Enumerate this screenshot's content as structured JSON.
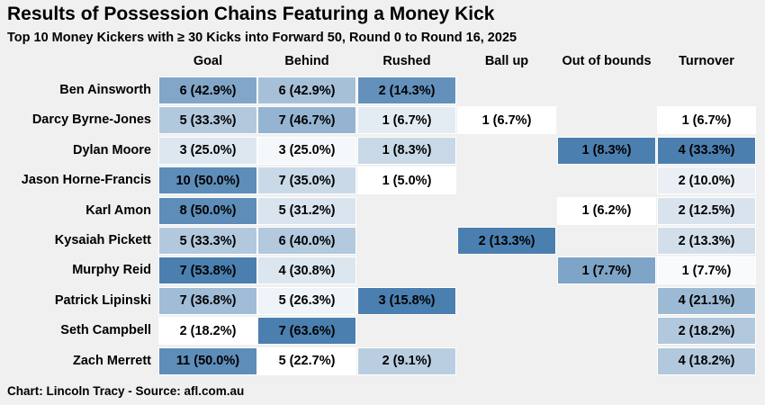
{
  "chart_data": {
    "type": "heatmap",
    "title": "Results of Possession Chains Featuring a Money Kick",
    "subtitle": "Top 10 Money Kickers with ≥ 30 Kicks into Forward 50, Round 0 to Round 16, 2025",
    "caption": "Chart: Lincoln Tracy - Source: afl.com.au",
    "columns": [
      "Goal",
      "Behind",
      "Rushed",
      "Ball up",
      "Out of bounds",
      "Turnover"
    ],
    "rows": [
      {
        "player": "Ben Ainsworth",
        "cells": [
          {
            "count": 6,
            "pct": 42.9,
            "label": "6 (42.9%)"
          },
          {
            "count": 6,
            "pct": 42.9,
            "label": "6 (42.9%)"
          },
          {
            "count": 2,
            "pct": 14.3,
            "label": "2 (14.3%)"
          },
          null,
          null,
          null
        ]
      },
      {
        "player": "Darcy Byrne-Jones",
        "cells": [
          {
            "count": 5,
            "pct": 33.3,
            "label": "5 (33.3%)"
          },
          {
            "count": 7,
            "pct": 46.7,
            "label": "7 (46.7%)"
          },
          {
            "count": 1,
            "pct": 6.7,
            "label": "1 (6.7%)"
          },
          {
            "count": 1,
            "pct": 6.7,
            "label": "1 (6.7%)"
          },
          null,
          {
            "count": 1,
            "pct": 6.7,
            "label": "1 (6.7%)"
          }
        ]
      },
      {
        "player": "Dylan Moore",
        "cells": [
          {
            "count": 3,
            "pct": 25.0,
            "label": "3 (25.0%)"
          },
          {
            "count": 3,
            "pct": 25.0,
            "label": "3 (25.0%)"
          },
          {
            "count": 1,
            "pct": 8.3,
            "label": "1 (8.3%)"
          },
          null,
          {
            "count": 1,
            "pct": 8.3,
            "label": "1 (8.3%)"
          },
          {
            "count": 4,
            "pct": 33.3,
            "label": "4 (33.3%)"
          }
        ]
      },
      {
        "player": "Jason Horne-Francis",
        "cells": [
          {
            "count": 10,
            "pct": 50.0,
            "label": "10 (50.0%)"
          },
          {
            "count": 7,
            "pct": 35.0,
            "label": "7 (35.0%)"
          },
          {
            "count": 1,
            "pct": 5.0,
            "label": "1 (5.0%)"
          },
          null,
          null,
          {
            "count": 2,
            "pct": 10.0,
            "label": "2 (10.0%)"
          }
        ]
      },
      {
        "player": "Karl Amon",
        "cells": [
          {
            "count": 8,
            "pct": 50.0,
            "label": "8 (50.0%)"
          },
          {
            "count": 5,
            "pct": 31.2,
            "label": "5 (31.2%)"
          },
          null,
          null,
          {
            "count": 1,
            "pct": 6.2,
            "label": "1 (6.2%)"
          },
          {
            "count": 2,
            "pct": 12.5,
            "label": "2 (12.5%)"
          }
        ]
      },
      {
        "player": "Kysaiah Pickett",
        "cells": [
          {
            "count": 5,
            "pct": 33.3,
            "label": "5 (33.3%)"
          },
          {
            "count": 6,
            "pct": 40.0,
            "label": "6 (40.0%)"
          },
          null,
          {
            "count": 2,
            "pct": 13.3,
            "label": "2 (13.3%)"
          },
          null,
          {
            "count": 2,
            "pct": 13.3,
            "label": "2 (13.3%)"
          }
        ]
      },
      {
        "player": "Murphy Reid",
        "cells": [
          {
            "count": 7,
            "pct": 53.8,
            "label": "7 (53.8%)"
          },
          {
            "count": 4,
            "pct": 30.8,
            "label": "4 (30.8%)"
          },
          null,
          null,
          {
            "count": 1,
            "pct": 7.7,
            "label": "1 (7.7%)"
          },
          {
            "count": 1,
            "pct": 7.7,
            "label": "1 (7.7%)"
          }
        ]
      },
      {
        "player": "Patrick Lipinski",
        "cells": [
          {
            "count": 7,
            "pct": 36.8,
            "label": "7 (36.8%)"
          },
          {
            "count": 5,
            "pct": 26.3,
            "label": "5 (26.3%)"
          },
          {
            "count": 3,
            "pct": 15.8,
            "label": "3 (15.8%)"
          },
          null,
          null,
          {
            "count": 4,
            "pct": 21.1,
            "label": "4 (21.1%)"
          }
        ]
      },
      {
        "player": "Seth Campbell",
        "cells": [
          {
            "count": 2,
            "pct": 18.2,
            "label": "2 (18.2%)"
          },
          {
            "count": 7,
            "pct": 63.6,
            "label": "7 (63.6%)"
          },
          null,
          null,
          null,
          {
            "count": 2,
            "pct": 18.2,
            "label": "2 (18.2%)"
          }
        ]
      },
      {
        "player": "Zach Merrett",
        "cells": [
          {
            "count": 11,
            "pct": 50.0,
            "label": "11 (50.0%)"
          },
          {
            "count": 5,
            "pct": 22.7,
            "label": "5 (22.7%)"
          },
          {
            "count": 2,
            "pct": 9.1,
            "label": "2 (9.1%)"
          },
          null,
          null,
          {
            "count": 4,
            "pct": 18.2,
            "label": "4 (18.2%)"
          }
        ]
      }
    ],
    "color_scale": {
      "low": "#ffffff",
      "high": "#4a7fb0",
      "scaling": "per column"
    }
  }
}
